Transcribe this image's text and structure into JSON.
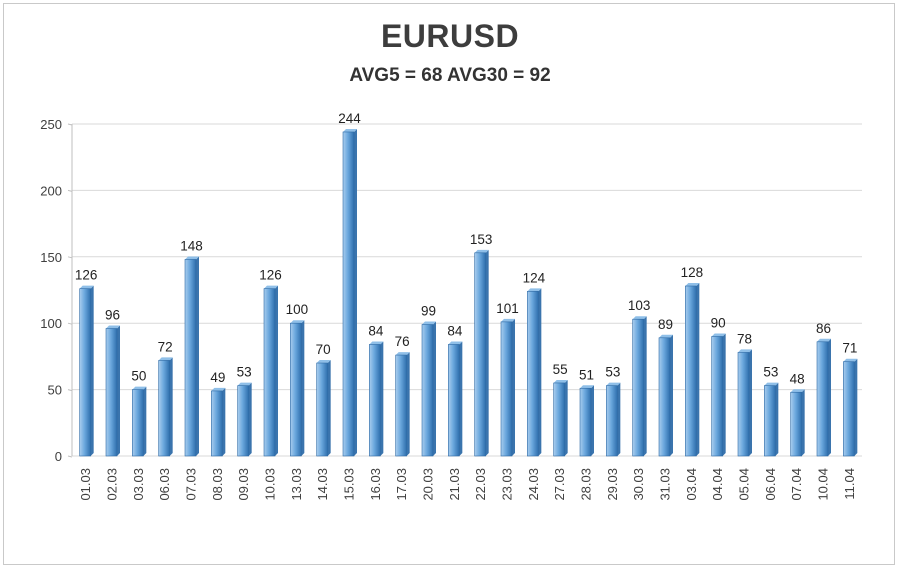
{
  "chart_data": {
    "type": "bar",
    "title": "EURUSD",
    "subtitle": "AVG5 = 68 AVG30 = 92",
    "categories": [
      "01.03",
      "02.03",
      "03.03",
      "06.03",
      "07.03",
      "08.03",
      "09.03",
      "10.03",
      "13.03",
      "14.03",
      "15.03",
      "16.03",
      "17.03",
      "20.03",
      "21.03",
      "22.03",
      "23.03",
      "24.03",
      "27.03",
      "28.03",
      "29.03",
      "30.03",
      "31.03",
      "03.04",
      "04.04",
      "05.04",
      "06.04",
      "07.04",
      "10.04",
      "11.04"
    ],
    "values": [
      126,
      96,
      50,
      72,
      148,
      49,
      53,
      126,
      100,
      70,
      244,
      84,
      76,
      99,
      84,
      153,
      101,
      124,
      55,
      51,
      53,
      103,
      89,
      128,
      90,
      78,
      53,
      48,
      86,
      71
    ],
    "yticks": [
      "0",
      "50",
      "100",
      "150",
      "200",
      "250"
    ],
    "ylim": [
      0,
      250
    ],
    "grid": true,
    "legend": "none",
    "colors": {
      "bar_light": "#a9cdee",
      "bar_mid": "#5b9bd5",
      "bar_dark": "#2f6fad",
      "grid": "#d9d9d9"
    }
  }
}
